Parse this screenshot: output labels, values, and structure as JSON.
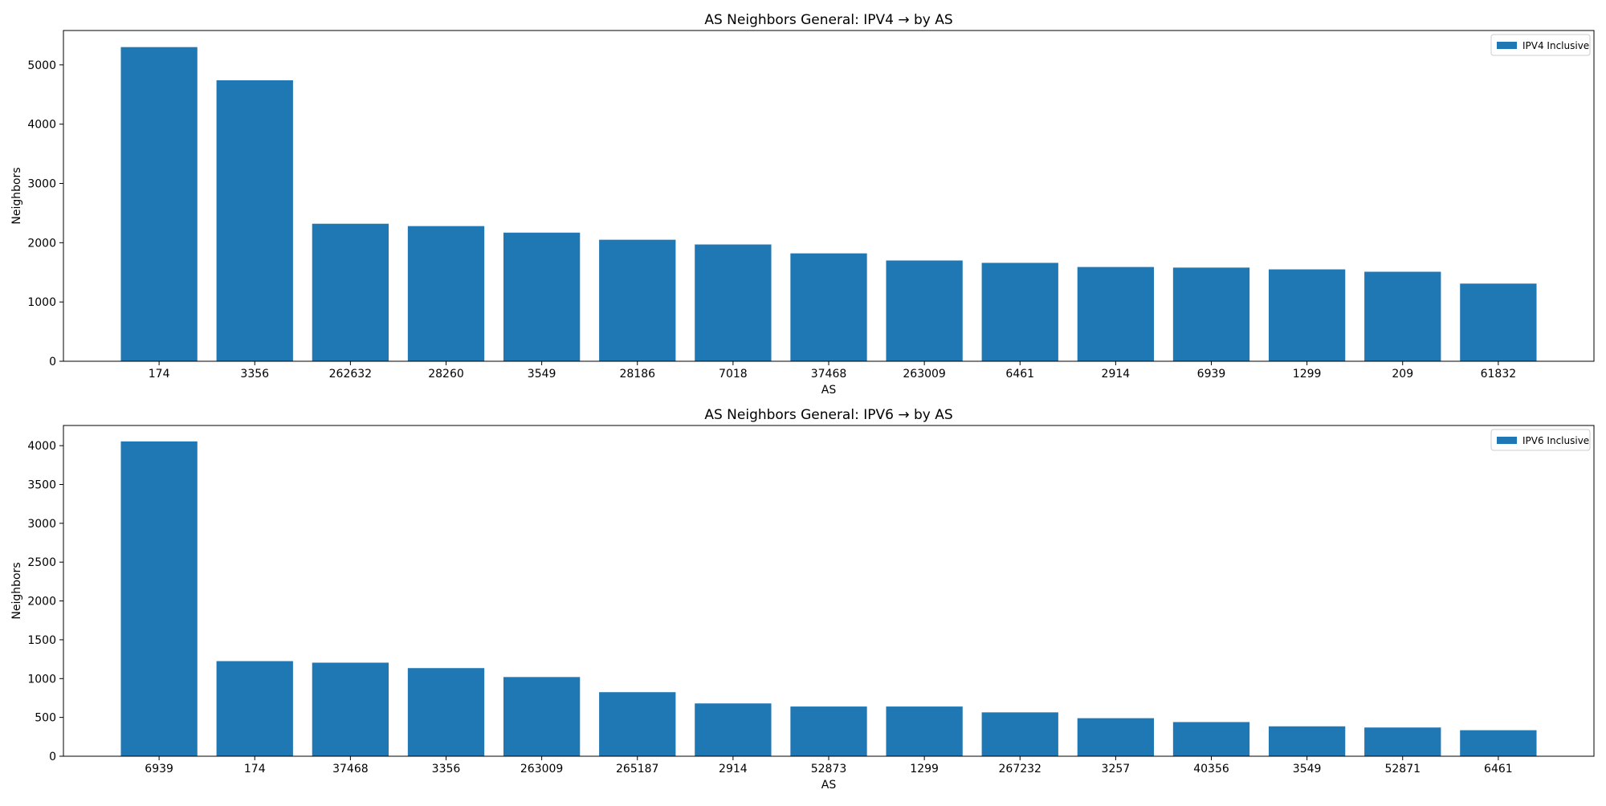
{
  "chart_data": [
    {
      "type": "bar",
      "title": "AS Neighbors General: IPV4 → by AS",
      "xlabel": "AS",
      "ylabel": "Neighbors",
      "categories": [
        "174",
        "3356",
        "262632",
        "28260",
        "3549",
        "28186",
        "7018",
        "37468",
        "263009",
        "6461",
        "2914",
        "6939",
        "1299",
        "209",
        "61832"
      ],
      "series": [
        {
          "name": "IPV4 Inclusive",
          "values": [
            5300,
            4740,
            2320,
            2280,
            2170,
            2050,
            1970,
            1820,
            1700,
            1660,
            1590,
            1580,
            1550,
            1510,
            1310
          ]
        }
      ],
      "ylim": [
        0,
        5580
      ],
      "yticks": [
        0,
        1000,
        2000,
        3000,
        4000,
        5000
      ],
      "grid": false,
      "legend_position": "top-right",
      "bar_color": "#1f77b4"
    },
    {
      "type": "bar",
      "title": "AS Neighbors General: IPV6 → by AS",
      "xlabel": "AS",
      "ylabel": "Neighbors",
      "categories": [
        "6939",
        "174",
        "37468",
        "3356",
        "263009",
        "265187",
        "2914",
        "52873",
        "1299",
        "267232",
        "3257",
        "40356",
        "3549",
        "52871",
        "6461"
      ],
      "series": [
        {
          "name": "IPV6 Inclusive",
          "values": [
            4055,
            1225,
            1205,
            1135,
            1020,
            825,
            680,
            640,
            640,
            565,
            490,
            440,
            385,
            370,
            335
          ]
        }
      ],
      "ylim": [
        0,
        4260
      ],
      "yticks": [
        0,
        500,
        1000,
        1500,
        2000,
        2500,
        3000,
        3500,
        4000
      ],
      "grid": false,
      "legend_position": "top-right",
      "bar_color": "#1f77b4"
    }
  ]
}
